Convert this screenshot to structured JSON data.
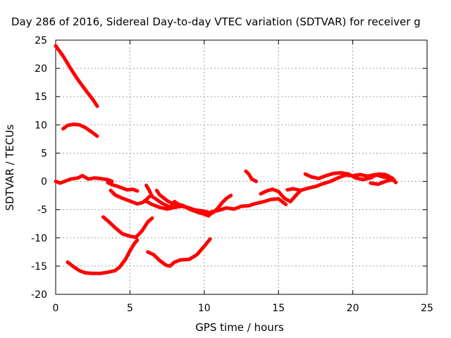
{
  "chart_data": {
    "type": "line",
    "title": "Day 286 of 2016, Sidereal Day-to-day VTEC variation (SDTVAR) for receiver g",
    "xlabel": "GPS time / hours",
    "ylabel": "SDTVAR / TECUs",
    "xlim": [
      0,
      25
    ],
    "ylim": [
      -20,
      25
    ],
    "xticks": [
      0,
      5,
      10,
      15,
      20,
      25
    ],
    "yticks": [
      -20,
      -15,
      -10,
      -5,
      0,
      5,
      10,
      15,
      20,
      25
    ],
    "grid": true,
    "color": "#ff0000",
    "series": [
      {
        "x": [
          0.0,
          0.5,
          1.0,
          1.5,
          2.0,
          2.5,
          2.8
        ],
        "y": [
          24.0,
          22.2,
          20.0,
          18.0,
          16.2,
          14.5,
          13.3
        ]
      },
      {
        "x": [
          0.5,
          0.8,
          1.2,
          1.6,
          2.0,
          2.5,
          2.8
        ],
        "y": [
          9.3,
          9.9,
          10.1,
          10.0,
          9.5,
          8.6,
          8.0
        ]
      },
      {
        "x": [
          0.0,
          0.3,
          0.7,
          1.0,
          1.5,
          1.8,
          2.2,
          2.6,
          3.0,
          3.5,
          3.8
        ],
        "y": [
          0.0,
          -0.3,
          0.1,
          0.4,
          0.6,
          1.0,
          0.4,
          0.6,
          0.5,
          0.3,
          0.0
        ]
      },
      {
        "x": [
          3.5,
          3.8,
          4.2,
          4.5,
          4.8,
          5.2,
          5.5
        ],
        "y": [
          -0.2,
          -0.6,
          -0.9,
          -1.2,
          -1.5,
          -1.4,
          -1.7
        ]
      },
      {
        "x": [
          3.7,
          4.0,
          4.5,
          5.0,
          5.5,
          5.8,
          6.0,
          6.3
        ],
        "y": [
          -1.6,
          -2.4,
          -3.0,
          -3.5,
          -4.0,
          -3.8,
          -3.5,
          -2.7
        ]
      },
      {
        "x": [
          6.1,
          6.3,
          6.5,
          6.8,
          7.1,
          7.4,
          7.7,
          8.0,
          8.3,
          8.6,
          9.0,
          9.3,
          9.6,
          10.0,
          10.3
        ],
        "y": [
          -0.7,
          -1.6,
          -2.7,
          -3.2,
          -3.8,
          -4.2,
          -4.6,
          -3.6,
          -4.1,
          -4.3,
          -4.9,
          -5.2,
          -5.5,
          -5.8,
          -6.1
        ]
      },
      {
        "x": [
          6.8,
          7.0,
          7.3,
          7.6,
          7.9,
          8.2,
          8.5,
          8.8,
          9.1,
          9.5,
          9.8,
          10.2
        ],
        "y": [
          -1.6,
          -2.4,
          -3.0,
          -3.6,
          -3.9,
          -4.1,
          -4.4,
          -4.6,
          -4.9,
          -5.1,
          -5.2,
          -5.4
        ]
      },
      {
        "x": [
          6.0,
          6.5,
          7.0,
          7.5,
          8.0,
          8.5,
          9.0,
          9.5,
          10.0,
          10.5,
          11.0,
          11.5,
          12.0,
          12.5,
          13.0,
          13.5,
          14.0,
          14.5,
          15.0,
          15.5
        ],
        "y": [
          -3.4,
          -4.1,
          -4.6,
          -4.9,
          -4.6,
          -4.4,
          -4.7,
          -5.2,
          -5.8,
          -5.4,
          -5.1,
          -4.7,
          -4.9,
          -4.4,
          -4.3,
          -3.9,
          -3.6,
          -3.2,
          -3.1,
          -4.1
        ]
      },
      {
        "x": [
          10.3,
          10.6,
          10.9,
          11.2,
          11.5,
          11.8
        ],
        "y": [
          -6.0,
          -5.5,
          -4.8,
          -3.8,
          -3.0,
          -2.5
        ]
      },
      {
        "x": [
          12.8,
          13.0,
          13.2,
          13.5
        ],
        "y": [
          1.8,
          1.3,
          0.4,
          0.0
        ]
      },
      {
        "x": [
          13.8,
          14.2,
          14.6,
          15.0,
          15.4,
          15.8,
          16.2,
          16.5
        ],
        "y": [
          -2.2,
          -1.7,
          -1.4,
          -1.8,
          -3.0,
          -3.6,
          -2.4,
          -1.6
        ]
      },
      {
        "x": [
          15.6,
          16.0,
          16.5,
          17.0,
          17.5,
          18.0,
          18.5,
          19.0,
          19.5,
          20.0,
          20.5,
          21.0,
          21.5,
          22.0,
          22.5,
          22.8
        ],
        "y": [
          -1.5,
          -1.3,
          -1.6,
          -1.2,
          -0.9,
          -0.4,
          0.0,
          0.6,
          1.1,
          1.0,
          1.2,
          0.9,
          1.2,
          0.8,
          0.6,
          0.2
        ]
      },
      {
        "x": [
          16.8,
          17.2,
          17.7,
          18.2,
          18.7,
          19.2,
          19.7,
          20.2,
          20.7,
          21.2,
          21.7,
          22.2,
          22.7
        ],
        "y": [
          1.3,
          0.8,
          0.5,
          1.0,
          1.4,
          1.5,
          1.3,
          0.6,
          0.3,
          0.6,
          1.3,
          1.2,
          0.5
        ]
      },
      {
        "x": [
          21.2,
          21.7,
          22.2,
          22.7,
          22.9
        ],
        "y": [
          -0.3,
          -0.5,
          0.0,
          0.3,
          -0.2
        ]
      },
      {
        "x": [
          3.2,
          3.6,
          4.0,
          4.5,
          5.0,
          5.4,
          5.8,
          6.2,
          6.5
        ],
        "y": [
          -6.3,
          -7.2,
          -8.2,
          -9.3,
          -9.7,
          -9.9,
          -8.8,
          -7.2,
          -6.5
        ]
      },
      {
        "x": [
          0.8,
          1.2,
          1.6,
          2.0,
          2.5,
          3.0,
          3.5,
          4.0,
          4.3,
          4.7,
          5.0,
          5.3,
          5.5
        ],
        "y": [
          -14.3,
          -15.1,
          -15.8,
          -16.2,
          -16.3,
          -16.3,
          -16.1,
          -15.8,
          -15.2,
          -13.8,
          -12.3,
          -11.0,
          -10.4
        ]
      },
      {
        "x": [
          6.2,
          6.6,
          7.0,
          7.4,
          7.7,
          8.0,
          8.4,
          9.0,
          9.5,
          10.0,
          10.4
        ],
        "y": [
          -12.5,
          -13.0,
          -14.0,
          -14.8,
          -15.0,
          -14.3,
          -13.9,
          -13.8,
          -13.0,
          -11.5,
          -10.2
        ]
      }
    ]
  }
}
